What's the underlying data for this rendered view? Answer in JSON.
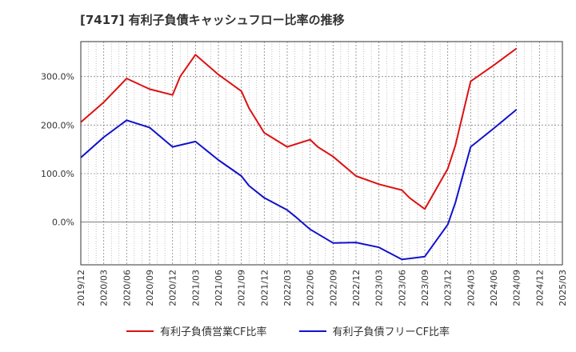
{
  "title": "[7417]  有利子負債キャッシュフロー比率の推移",
  "colors": {
    "series1": "#dd1111",
    "series2": "#1111cc",
    "grid": "#999999"
  },
  "chart_data": {
    "type": "line",
    "x": [
      "2019/12",
      "2020/03",
      "2020/06",
      "2020/09",
      "2020/12",
      "2021/03",
      "2021/06",
      "2021/09",
      "2021/12",
      "2022/03",
      "2022/06",
      "2022/09",
      "2022/12",
      "2023/03",
      "2023/06",
      "2023/09",
      "2023/12",
      "2024/03",
      "2024/06",
      "2024/09",
      "2024/12",
      "2025/03"
    ],
    "x_ticks": [
      "2019/12",
      "2020/03",
      "2020/06",
      "2020/09",
      "2020/12",
      "2021/03",
      "2021/06",
      "2021/09",
      "2021/12",
      "2022/03",
      "2022/06",
      "2022/09",
      "2022/12",
      "2023/03",
      "2023/06",
      "2023/09",
      "2023/12",
      "2024/03",
      "2024/06",
      "2024/09",
      "2024/12",
      "2025/03"
    ],
    "y_ticks": [
      "0.0%",
      "100.0%",
      "200.0%",
      "300.0%"
    ],
    "y_tick_values": [
      0,
      100,
      200,
      300
    ],
    "ylim": [
      -88,
      372
    ],
    "grid": true,
    "legend_position": "bottom",
    "series": [
      {
        "name": "有利子負債営業CF比率",
        "color": "#dd1111",
        "points": [
          [
            "2019/12",
            206
          ],
          [
            "2020/03",
            247
          ],
          [
            "2020/06",
            296
          ],
          [
            "2020/09",
            274
          ],
          [
            "2020/12",
            262
          ],
          [
            "2021/01",
            300
          ],
          [
            "2021/03",
            345
          ],
          [
            "2021/06",
            304
          ],
          [
            "2021/09",
            270
          ],
          [
            "2021/10",
            235
          ],
          [
            "2021/12",
            184
          ],
          [
            "2022/03",
            155
          ],
          [
            "2022/06",
            170
          ],
          [
            "2022/07",
            155
          ],
          [
            "2022/09",
            135
          ],
          [
            "2022/12",
            95
          ],
          [
            "2023/03",
            78
          ],
          [
            "2023/06",
            66
          ],
          [
            "2023/07",
            50
          ],
          [
            "2023/09",
            27
          ],
          [
            "2023/12",
            110
          ],
          [
            "2024/01",
            158
          ],
          [
            "2024/03",
            290
          ],
          [
            "2024/06",
            323
          ],
          [
            "2024/09",
            358
          ]
        ]
      },
      {
        "name": "有利子負債フリーCF比率",
        "color": "#1111cc",
        "points": [
          [
            "2019/12",
            133
          ],
          [
            "2020/03",
            175
          ],
          [
            "2020/06",
            210
          ],
          [
            "2020/09",
            195
          ],
          [
            "2020/12",
            155
          ],
          [
            "2021/03",
            166
          ],
          [
            "2021/06",
            128
          ],
          [
            "2021/09",
            95
          ],
          [
            "2021/10",
            75
          ],
          [
            "2021/12",
            50
          ],
          [
            "2022/03",
            25
          ],
          [
            "2022/04",
            12
          ],
          [
            "2022/06",
            -15
          ],
          [
            "2022/09",
            -43
          ],
          [
            "2022/12",
            -42
          ],
          [
            "2023/03",
            -52
          ],
          [
            "2023/06",
            -77
          ],
          [
            "2023/09",
            -71
          ],
          [
            "2023/12",
            -5
          ],
          [
            "2024/01",
            40
          ],
          [
            "2024/03",
            155
          ],
          [
            "2024/06",
            193
          ],
          [
            "2024/09",
            232
          ]
        ]
      }
    ]
  }
}
